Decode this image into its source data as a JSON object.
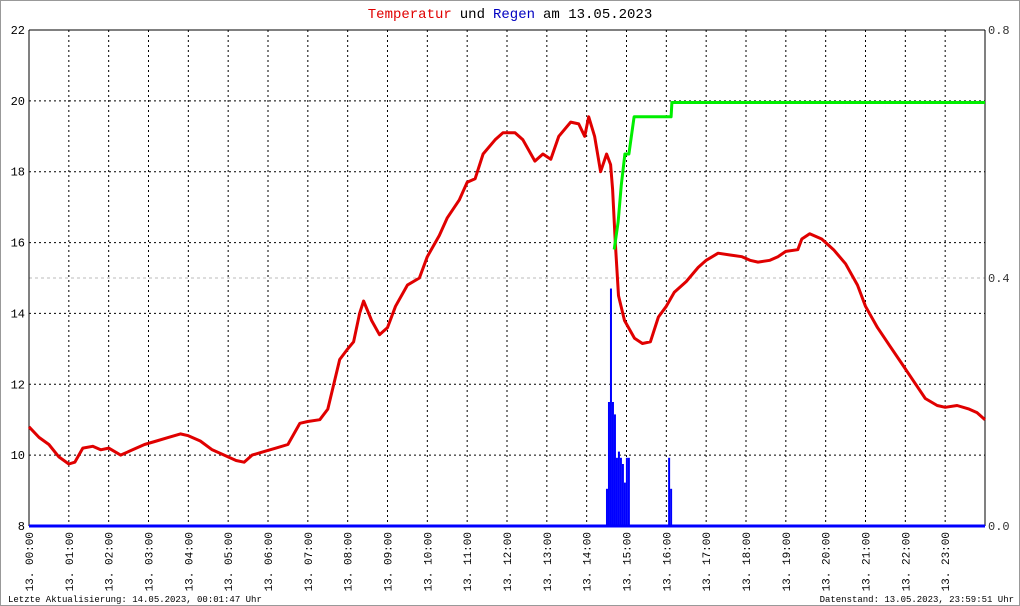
{
  "chart_data": {
    "type": "line",
    "title": [
      {
        "text": "Temperatur",
        "color": "#e00000"
      },
      {
        "text": "und",
        "color": "#000000"
      },
      {
        "text": "Regen",
        "color": "#0000c0"
      },
      {
        "text": "am 13.05.2023",
        "color": "#000000"
      }
    ],
    "footer_left": "Letzte Aktualisierung: 14.05.2023, 00:01:47 Uhr",
    "footer_right": "Datenstand: 13.05.2023, 23:59:51 Uhr",
    "xlim": [
      0,
      24
    ],
    "xticks": [
      {
        "value": 0,
        "label": "13. 00:00"
      },
      {
        "value": 1,
        "label": "13. 01:00"
      },
      {
        "value": 2,
        "label": "13. 02:00"
      },
      {
        "value": 3,
        "label": "13. 03:00"
      },
      {
        "value": 4,
        "label": "13. 04:00"
      },
      {
        "value": 5,
        "label": "13. 05:00"
      },
      {
        "value": 6,
        "label": "13. 06:00"
      },
      {
        "value": 7,
        "label": "13. 07:00"
      },
      {
        "value": 8,
        "label": "13. 08:00"
      },
      {
        "value": 9,
        "label": "13. 09:00"
      },
      {
        "value": 10,
        "label": "13. 10:00"
      },
      {
        "value": 11,
        "label": "13. 11:00"
      },
      {
        "value": 12,
        "label": "13. 12:00"
      },
      {
        "value": 13,
        "label": "13. 13:00"
      },
      {
        "value": 14,
        "label": "13. 14:00"
      },
      {
        "value": 15,
        "label": "13. 15:00"
      },
      {
        "value": 16,
        "label": "13. 16:00"
      },
      {
        "value": 17,
        "label": "13. 17:00"
      },
      {
        "value": 18,
        "label": "13. 18:00"
      },
      {
        "value": 19,
        "label": "13. 19:00"
      },
      {
        "value": 20,
        "label": "13. 20:00"
      },
      {
        "value": 21,
        "label": "13. 21:00"
      },
      {
        "value": 22,
        "label": "13. 22:00"
      },
      {
        "value": 23,
        "label": "13. 23:00"
      }
    ],
    "ylim": [
      8,
      22
    ],
    "yticks": [
      8,
      10,
      12,
      14,
      16,
      18,
      20,
      22
    ],
    "y2lim": [
      0,
      0.8
    ],
    "y2ticks": [
      {
        "value": 0,
        "label": "0.0"
      },
      {
        "value": 0.4,
        "label": "0.4"
      },
      {
        "value": 0.8,
        "label": "0.8"
      }
    ],
    "grid": true,
    "series": [
      {
        "type": "line",
        "color": "#e00000",
        "axis": "y",
        "x": [
          0,
          0.25,
          0.5,
          0.75,
          1,
          1.15,
          1.35,
          1.6,
          1.8,
          2,
          2.3,
          2.6,
          2.9,
          3.2,
          3.5,
          3.8,
          4,
          4.3,
          4.6,
          4.9,
          5.2,
          5.4,
          5.6,
          5.9,
          6.2,
          6.5,
          6.8,
          7,
          7.3,
          7.5,
          7.8,
          8,
          8.15,
          8.3,
          8.4,
          8.6,
          8.8,
          9,
          9.2,
          9.5,
          9.8,
          10,
          10.3,
          10.5,
          10.8,
          11,
          11.2,
          11.4,
          11.7,
          11.9,
          12.2,
          12.4,
          12.7,
          12.9,
          13.1,
          13.3,
          13.6,
          13.8,
          13.95,
          14.05,
          14.2,
          14.35,
          14.5,
          14.6,
          14.65,
          14.72,
          14.8,
          14.95,
          15.2,
          15.4,
          15.6,
          15.8,
          16,
          16.2,
          16.5,
          16.8,
          17,
          17.3,
          17.6,
          17.9,
          18.1,
          18.3,
          18.6,
          18.8,
          19,
          19.3,
          19.4,
          19.6,
          19.9,
          20.2,
          20.5,
          20.8,
          21,
          21.3,
          21.6,
          21.9,
          22.2,
          22.5,
          22.8,
          23,
          23.3,
          23.6,
          23.8,
          24
        ],
        "values": [
          10.8,
          10.5,
          10.3,
          9.95,
          9.75,
          9.8,
          10.2,
          10.25,
          10.15,
          10.2,
          10,
          10.15,
          10.3,
          10.4,
          10.5,
          10.6,
          10.55,
          10.4,
          10.15,
          10,
          9.85,
          9.8,
          10,
          10.1,
          10.2,
          10.3,
          10.9,
          10.95,
          11,
          11.3,
          12.7,
          13,
          13.2,
          14,
          14.35,
          13.8,
          13.4,
          13.6,
          14.2,
          14.8,
          15,
          15.6,
          16.2,
          16.7,
          17.2,
          17.7,
          17.8,
          18.5,
          18.9,
          19.1,
          19.1,
          18.9,
          18.3,
          18.5,
          18.35,
          19,
          19.4,
          19.35,
          19,
          19.55,
          19,
          18,
          18.5,
          18.2,
          17.5,
          16,
          14.5,
          13.8,
          13.3,
          13.15,
          13.2,
          13.9,
          14.2,
          14.6,
          14.9,
          15.3,
          15.5,
          15.7,
          15.65,
          15.6,
          15.5,
          15.45,
          15.5,
          15.6,
          15.75,
          15.8,
          16.1,
          16.25,
          16.1,
          15.8,
          15.4,
          14.8,
          14.2,
          13.6,
          13.1,
          12.6,
          12.1,
          11.6,
          11.4,
          11.35,
          11.4,
          11.3,
          11.2,
          11
        ]
      },
      {
        "type": "bar",
        "color": "#0000ff",
        "axis": "y2",
        "x": [
          14.51,
          14.56,
          14.61,
          14.66,
          14.71,
          14.76,
          14.81,
          14.86,
          14.91,
          14.96,
          15.01,
          15.06,
          16.07,
          16.12
        ],
        "values": [
          0.06,
          0.2,
          0.383,
          0.2,
          0.18,
          0.11,
          0.12,
          0.11,
          0.1,
          0.07,
          0.11,
          0.11,
          0.11,
          0.06
        ]
      },
      {
        "type": "line",
        "color": "#00ee00",
        "axis": "y2",
        "x": [
          14.69,
          14.79,
          14.87,
          14.96,
          15.06,
          15.19,
          16.12,
          16.14,
          24
        ],
        "values": [
          0.446,
          0.49,
          0.55,
          0.6,
          0.6,
          0.66,
          0.66,
          0.683,
          0.683
        ]
      }
    ]
  }
}
